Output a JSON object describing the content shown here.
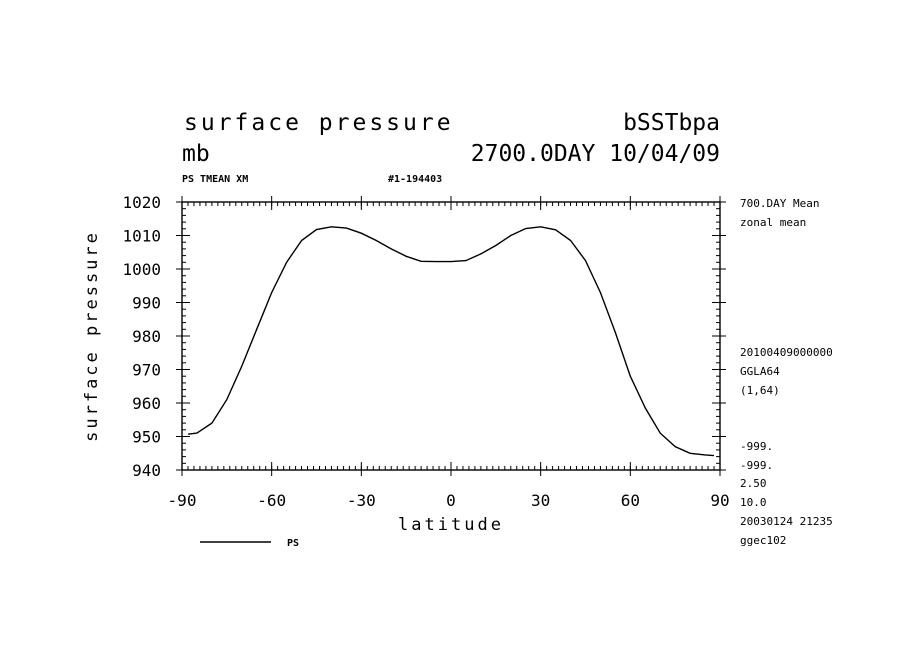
{
  "header": {
    "title": "surface pressure",
    "run": "bSSTbpa",
    "units": "mb",
    "period": "2700.0DAY 10/04/09",
    "field_label": "PS TMEAN XM",
    "run_id": "#1-194403"
  },
  "side_info": {
    "line1": "700.DAY Mean",
    "line2": "zonal mean",
    "line3": "20100409000000",
    "line4": "GGLA64",
    "line5": "(1,64)",
    "line6": "-999.",
    "line7": "-999.",
    "line8": "2.50",
    "line9": "10.0",
    "line10": "20030124  21235",
    "line11": "ggec102"
  },
  "legend": {
    "label": "PS"
  },
  "chart_data": {
    "type": "line",
    "xlabel": "latitude",
    "ylabel": "surface pressure",
    "xlim": [
      -90,
      90
    ],
    "ylim": [
      940,
      1020
    ],
    "xticks": [
      "-90",
      "-60",
      "-30",
      "0",
      "30",
      "60",
      "90"
    ],
    "yticks": [
      "940",
      "950",
      "960",
      "970",
      "980",
      "990",
      "1000",
      "1010",
      "1020"
    ],
    "series": [
      {
        "name": "PS",
        "x": [
          -88,
          -85,
          -80,
          -75,
          -70,
          -65,
          -60,
          -55,
          -50,
          -45,
          -40,
          -35,
          -30,
          -25,
          -20,
          -15,
          -10,
          -5,
          0,
          5,
          10,
          15,
          20,
          25,
          30,
          35,
          40,
          45,
          50,
          55,
          60,
          65,
          70,
          75,
          80,
          85,
          88
        ],
        "y": [
          950.7,
          951,
          954,
          961,
          971,
          982,
          993,
          1002,
          1008.5,
          1011.8,
          1012.6,
          1012.2,
          1010.7,
          1008.5,
          1006,
          1003.8,
          1002.3,
          1002.2,
          1002.2,
          1002.5,
          1004.5,
          1007,
          1010,
          1012.1,
          1012.6,
          1011.7,
          1008.5,
          1002.5,
          993,
          981,
          968,
          958.5,
          951,
          947,
          945,
          944.5,
          944.3
        ]
      }
    ]
  }
}
